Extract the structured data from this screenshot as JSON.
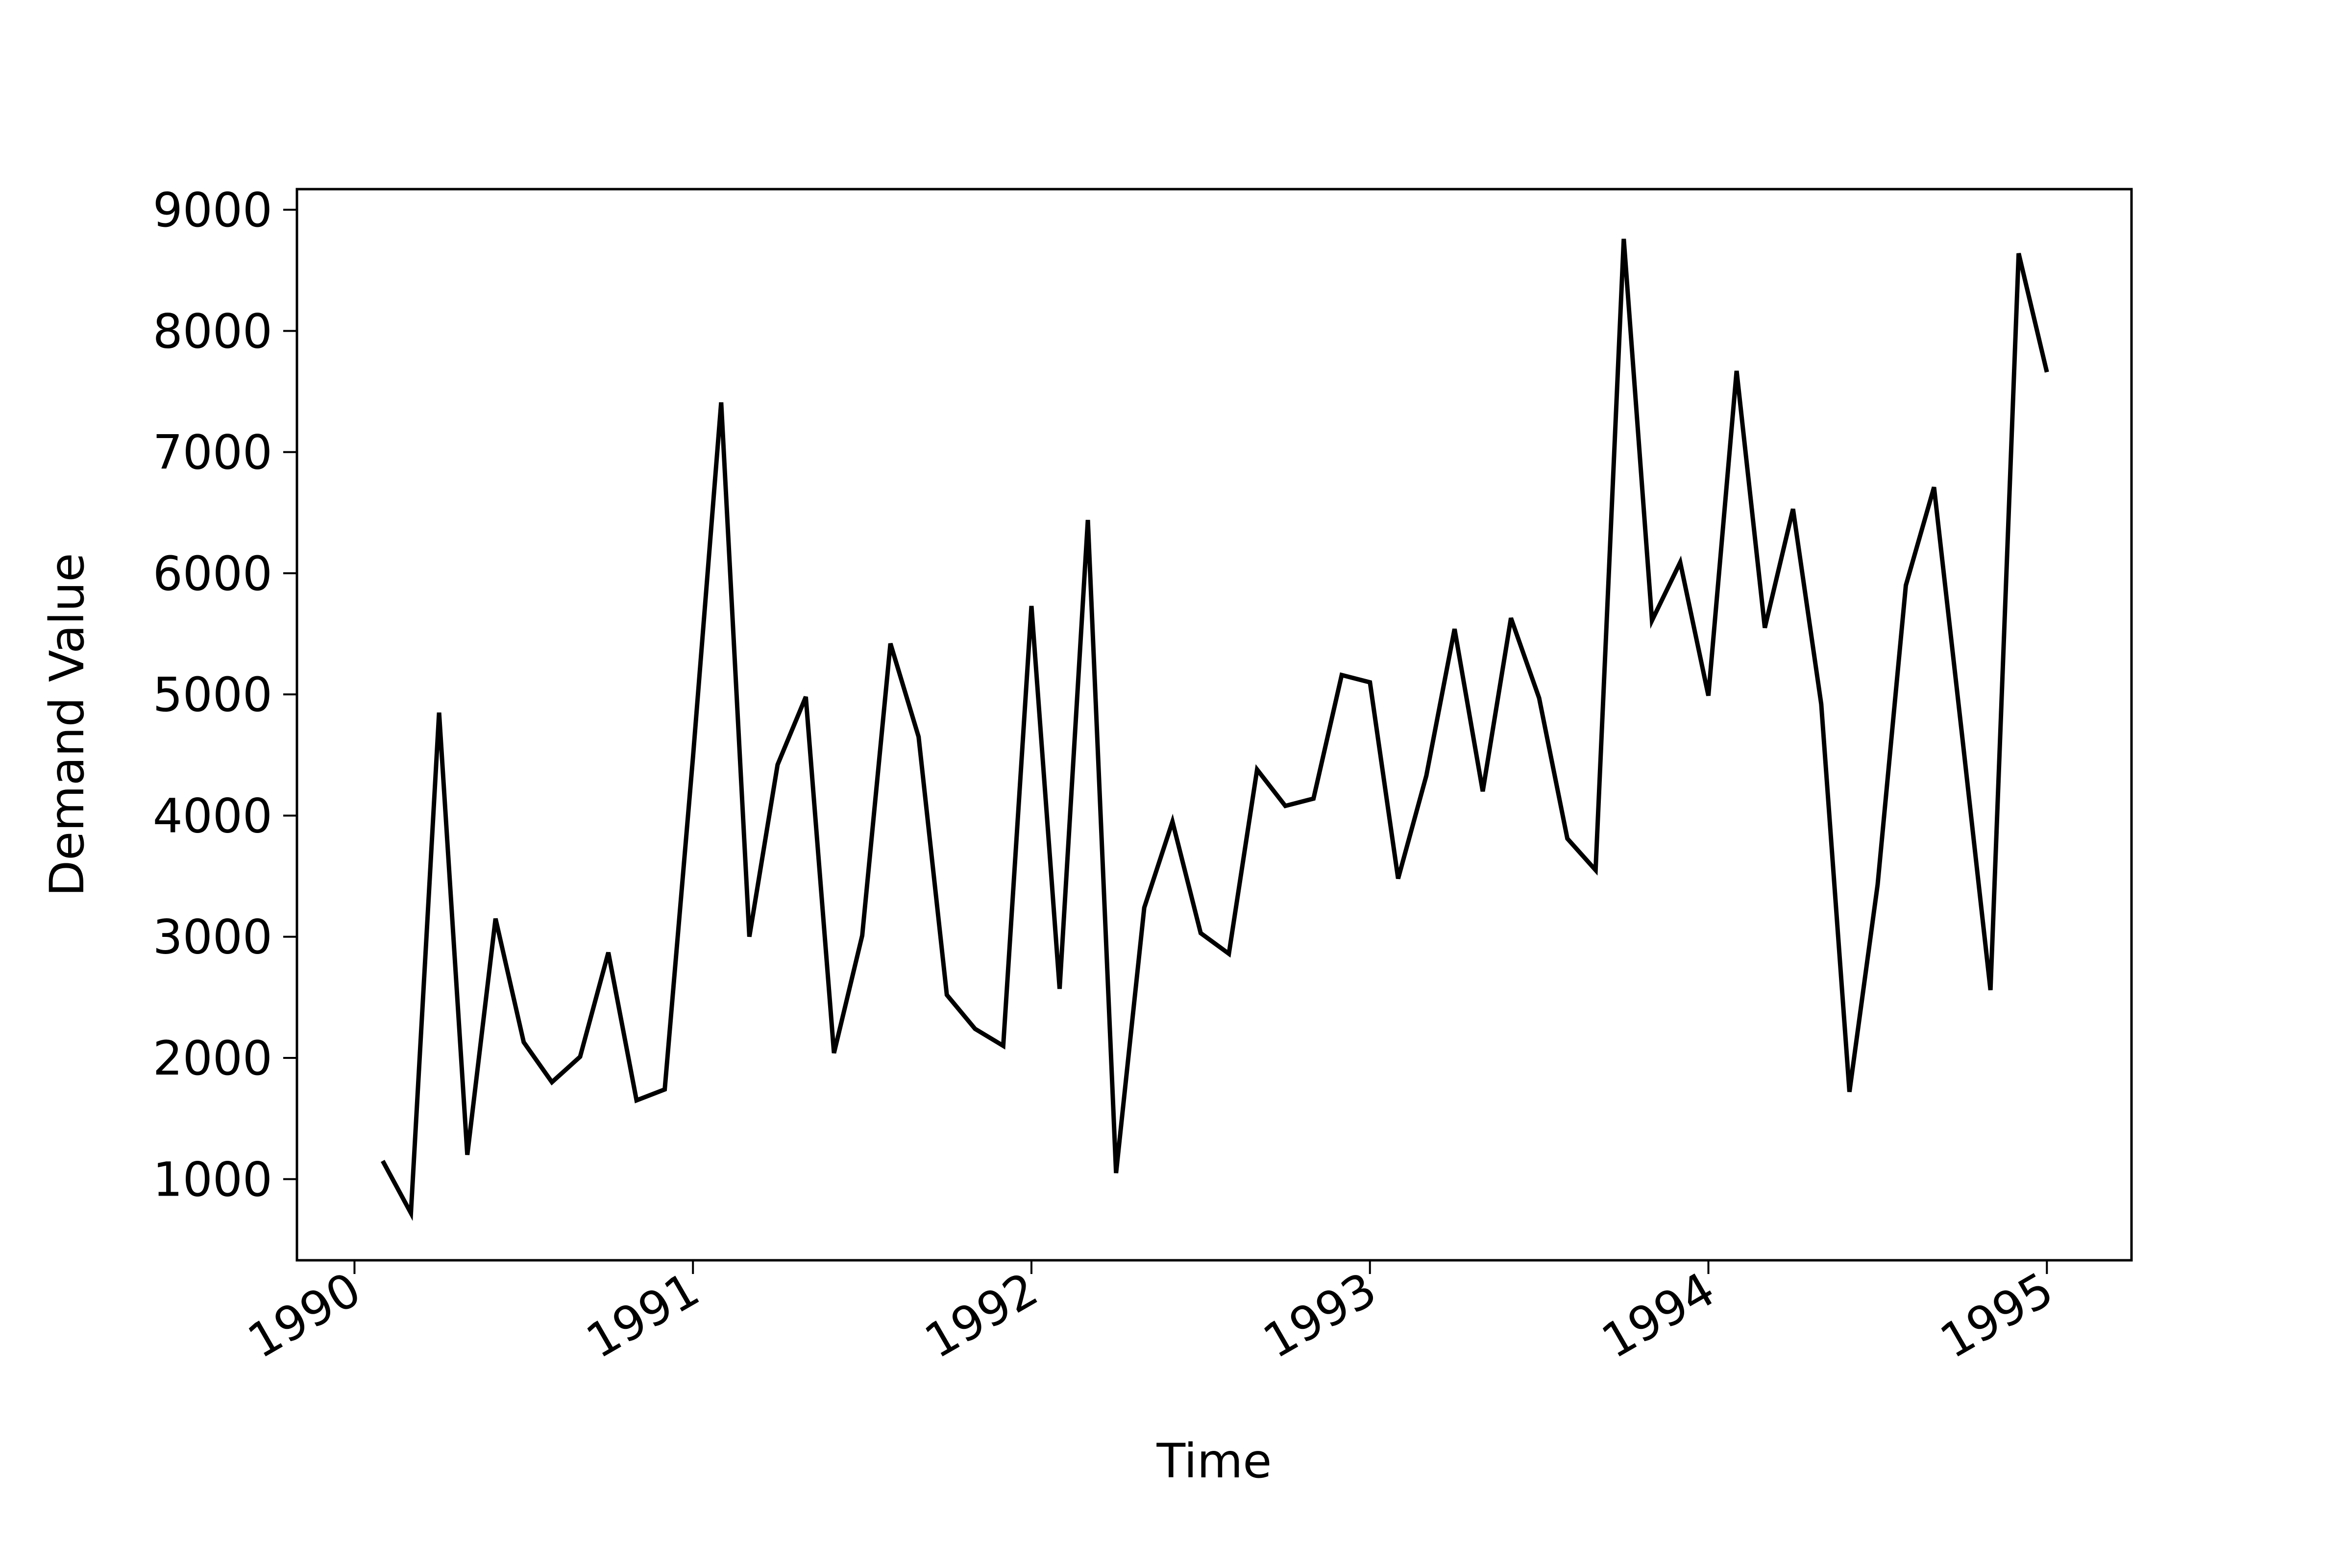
{
  "chart_data": {
    "type": "line",
    "title": "",
    "xlabel": "Time",
    "ylabel": "Demand Value",
    "xlim": [
      1989.83,
      1995.25
    ],
    "ylim": [
      330,
      9170
    ],
    "x_ticks": [
      1990,
      1991,
      1992,
      1993,
      1994,
      1995
    ],
    "x_tick_labels": [
      "1990",
      "1991",
      "1992",
      "1993",
      "1994",
      "1995"
    ],
    "y_ticks": [
      1000,
      2000,
      3000,
      4000,
      5000,
      6000,
      7000,
      8000,
      9000
    ],
    "y_tick_labels": [
      "1000",
      "2000",
      "3000",
      "4000",
      "5000",
      "6000",
      "7000",
      "8000",
      "9000"
    ],
    "grid": false,
    "legend": "none",
    "colors": {
      "line": "#000000",
      "axes": "#000000",
      "background": "#ffffff"
    },
    "series": [
      {
        "x": [
          "1990-02",
          "1990-03",
          "1990-04",
          "1990-05",
          "1990-06",
          "1990-07",
          "1990-08",
          "1990-09",
          "1990-10",
          "1990-11",
          "1990-12",
          "1991-01",
          "1991-02",
          "1991-03",
          "1991-04",
          "1991-05",
          "1991-06",
          "1991-07",
          "1991-08",
          "1991-09",
          "1991-10",
          "1991-11",
          "1991-12",
          "1992-01",
          "1992-02",
          "1992-03",
          "1992-04",
          "1992-05",
          "1992-06",
          "1992-07",
          "1992-08",
          "1992-09",
          "1992-10",
          "1992-11",
          "1992-12",
          "1993-01",
          "1993-02",
          "1993-03",
          "1993-04",
          "1993-05",
          "1993-06",
          "1993-07",
          "1993-08",
          "1993-09",
          "1993-10",
          "1993-11",
          "1993-12",
          "1994-01",
          "1994-02",
          "1994-03",
          "1994-04",
          "1994-05",
          "1994-06",
          "1994-07",
          "1994-08",
          "1994-09",
          "1994-10",
          "1994-11",
          "1994-12",
          "1995-01"
        ],
        "values": [
          1150,
          720,
          4850,
          1200,
          3150,
          2130,
          1800,
          2010,
          2870,
          1650,
          1740,
          4480,
          7410,
          3000,
          4420,
          4980,
          2040,
          3010,
          5420,
          4650,
          2520,
          2240,
          2100,
          5730,
          2570,
          6440,
          1050,
          3240,
          3950,
          3030,
          2860,
          4380,
          4080,
          4140,
          5160,
          5100,
          3480,
          4330,
          5540,
          4200,
          5630,
          4970,
          3810,
          3550,
          8760,
          5610,
          6090,
          4990,
          7670,
          5550,
          6530,
          4920,
          1720,
          3430,
          5900,
          6710,
          4650,
          2560,
          8640,
          7660
        ]
      }
    ]
  }
}
